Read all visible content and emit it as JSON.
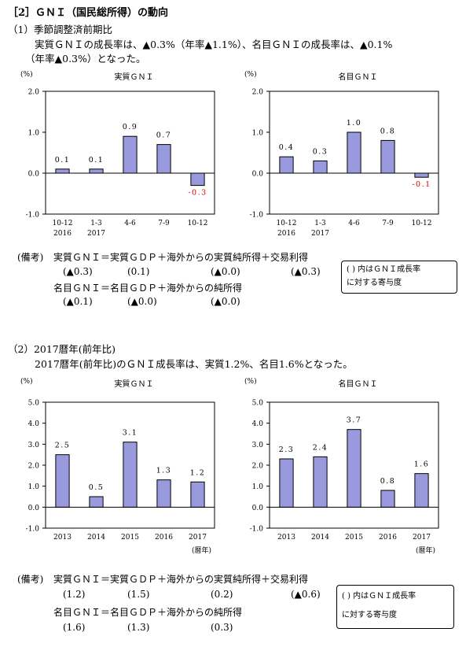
{
  "heading": "［2］ＧＮＩ（国民総所得）の動向",
  "sec1": {
    "title": "（1）季節調整済前期比",
    "text_line1": "実質ＧＮＩの成長率は、▲0.3%（年率▲1.1%）、名目ＧＮＩの成長率は、▲0.1%",
    "text_line2": "（年率▲0.3%）となった。",
    "note_label": "(備考)",
    "eq_real": "実質ＧＮＩ＝実質ＧＤＰ＋海外からの実質純所得＋交易利得",
    "eq_real_vals": [
      "(▲0.3)",
      "(0.1)",
      "(▲0.0)",
      "(▲0.3)"
    ],
    "eq_nominal": "名目ＧＮＩ＝名目ＧＤＰ＋海外からの純所得",
    "eq_nominal_vals": [
      "(▲0.1)",
      "(▲0.0)",
      "(▲0.0)"
    ],
    "legend_line1": "(  ) 内はＧＮＩ成長率",
    "legend_line2": "に対する寄与度"
  },
  "sec2": {
    "title": "（2）2017暦年(前年比)",
    "text_line1": "2017暦年(前年比)のＧＮＩ成長率は、実質1.2%、名目1.6%となった。",
    "note_label": "(備考)",
    "eq_real": "実質ＧＮＩ＝実質ＧＤＰ＋海外からの実質純所得＋交易利得",
    "eq_real_vals": [
      "(1.2)",
      "(1.5)",
      "(0.2)",
      "(▲0.6)"
    ],
    "eq_nominal": "名目ＧＮＩ＝名目ＧＤＰ＋海外からの純所得",
    "eq_nominal_vals": [
      "(1.6)",
      "(1.3)",
      "(0.3)"
    ],
    "legend_line1": "(  ) 内はＧＮＩ成長率",
    "legend_line2": "に対する寄与度"
  },
  "colors": {
    "bar": "#9999dd",
    "negative_label": "#dd0000"
  },
  "chart_data": [
    {
      "type": "bar",
      "title": "実質ＧＮＩ",
      "unit": "(%)",
      "categories": [
        "10-12",
        "1-3",
        "4-6",
        "7-9",
        "10-12"
      ],
      "category_years": [
        "2016",
        "2017",
        "",
        "",
        ""
      ],
      "values": [
        0.1,
        0.1,
        0.9,
        0.7,
        -0.3
      ],
      "value_labels": [
        "0.1",
        "0.1",
        "0.9",
        "0.7",
        "-0.3"
      ],
      "ylim": [
        -1.0,
        2.0
      ],
      "yticks": [
        "2.0",
        "1.0",
        "0.0",
        "-1.0"
      ],
      "x_suffix": ""
    },
    {
      "type": "bar",
      "title": "名目ＧＮＩ",
      "unit": "(%)",
      "categories": [
        "10-12",
        "1-3",
        "4-6",
        "7-9",
        "10-12"
      ],
      "category_years": [
        "2016",
        "2017",
        "",
        "",
        ""
      ],
      "values": [
        0.4,
        0.3,
        1.0,
        0.8,
        -0.1
      ],
      "value_labels": [
        "0.4",
        "0.3",
        "1.0",
        "0.8",
        "-0.1"
      ],
      "ylim": [
        -1.0,
        2.0
      ],
      "yticks": [
        "2.0",
        "1.0",
        "0.0",
        "-1.0"
      ],
      "x_suffix": ""
    },
    {
      "type": "bar",
      "title": "実質ＧＮＩ",
      "unit": "(%)",
      "categories": [
        "2013",
        "2014",
        "2015",
        "2016",
        "2017"
      ],
      "category_years": [
        "",
        "",
        "",
        "",
        ""
      ],
      "values": [
        2.5,
        0.5,
        3.1,
        1.3,
        1.2
      ],
      "value_labels": [
        "2.5",
        "0.5",
        "3.1",
        "1.3",
        "1.2"
      ],
      "ylim": [
        -1.0,
        5.0
      ],
      "yticks": [
        "5.0",
        "4.0",
        "3.0",
        "2.0",
        "1.0",
        "0.0",
        "-1.0"
      ],
      "x_suffix": "(暦年)"
    },
    {
      "type": "bar",
      "title": "名目ＧＮＩ",
      "unit": "(%)",
      "categories": [
        "2013",
        "2014",
        "2015",
        "2016",
        "2017"
      ],
      "category_years": [
        "",
        "",
        "",
        "",
        ""
      ],
      "values": [
        2.3,
        2.4,
        3.7,
        0.8,
        1.6
      ],
      "value_labels": [
        "2.3",
        "2.4",
        "3.7",
        "0.8",
        "1.6"
      ],
      "ylim": [
        -1.0,
        5.0
      ],
      "yticks": [
        "5.0",
        "4.0",
        "3.0",
        "2.0",
        "1.0",
        "0.0",
        "-1.0"
      ],
      "x_suffix": "(暦年)"
    }
  ]
}
